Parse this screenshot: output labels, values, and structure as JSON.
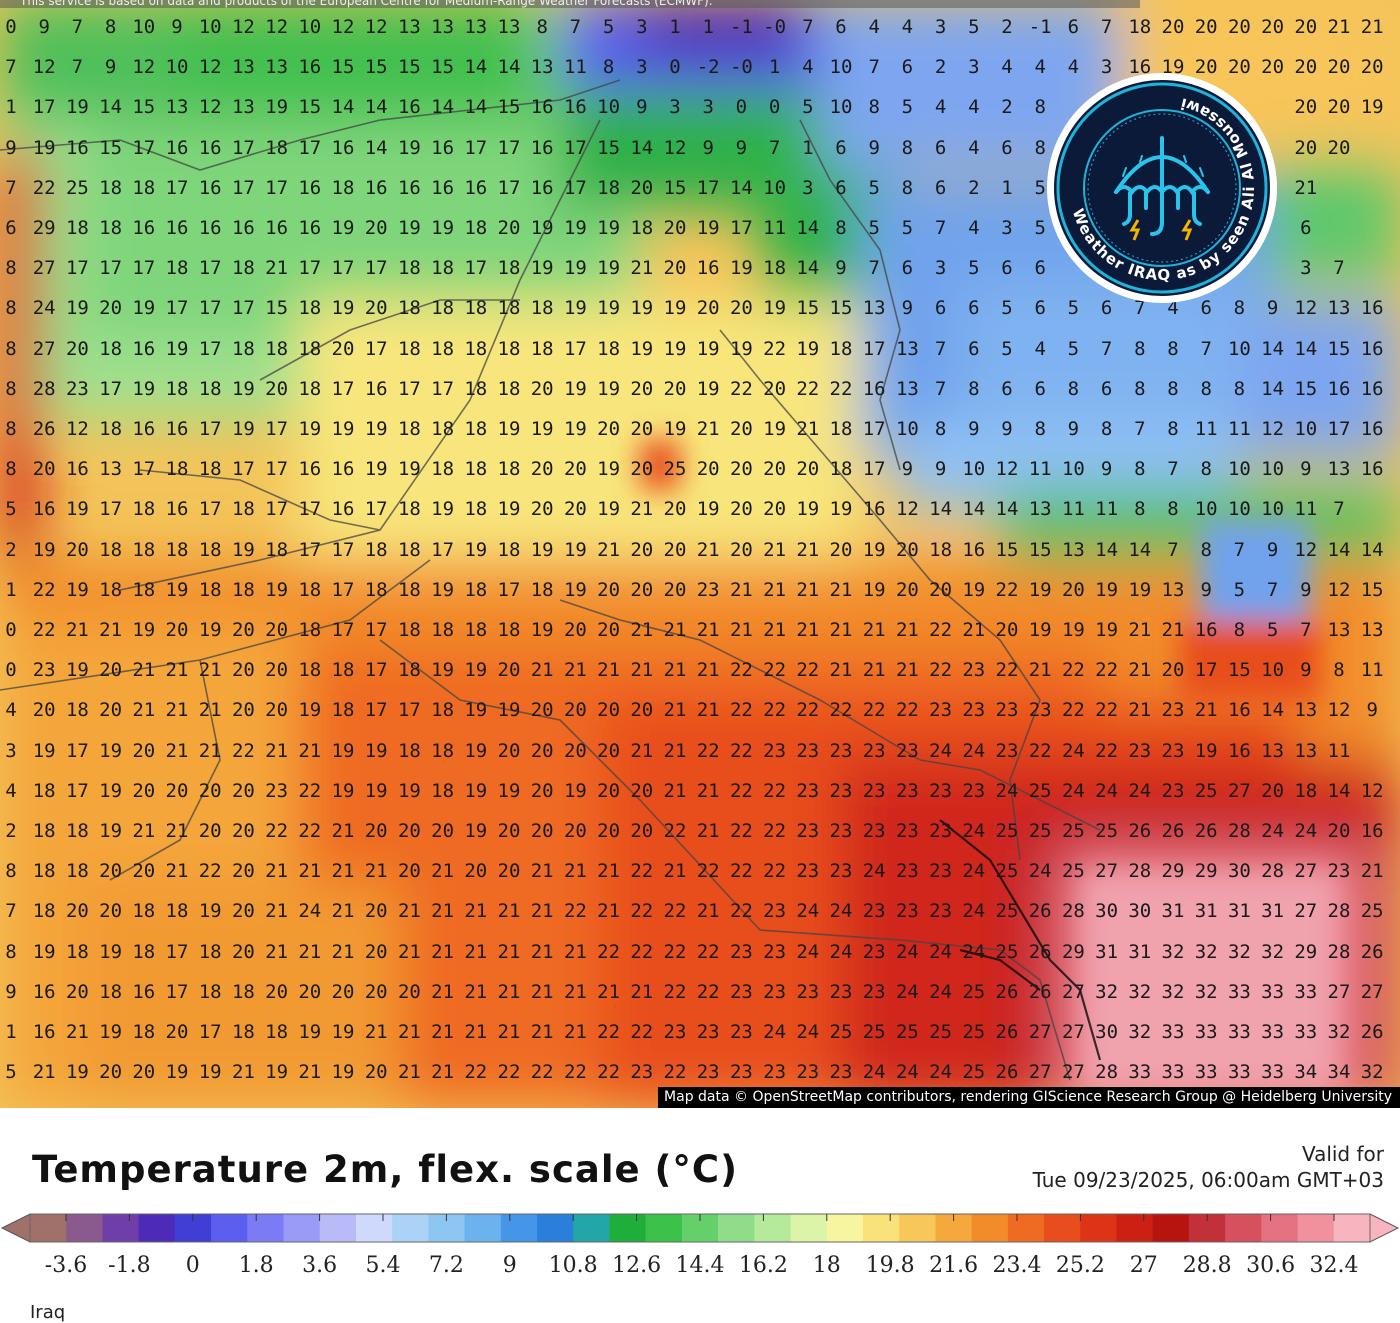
{
  "map": {
    "top_notice": "This service is based on data and products of the European Centre for Medium-Range Weather Forecasts (ECMWF).",
    "attribution": "Map data © OpenStreetMap contributors, rendering GIScience Research Group @ Heidelberg University",
    "grid_rows": [
      "0 9 7 8 10 9 10 12 12 10 12 12 13 13 13 13 8 7 5 3 1 1 -1 -0 7 6 4 4 3 5 2 -1 6 7 18 20 20 20 20 20 21 21",
      "7 12 7 9 12 10 12 13 13 16 15 15 15 15 14 14 13 11 8 3 0 -2 -0 1 4 10 7 6 2 3 4 4 4 3 16 19 20 20 20 20 20 20",
      "1 17 19 14 15 13 12 13 19 15 14 14 16 14 14 15 16 16 10 9 3 3 0 0 5 10 8 5 4 4 2 8 6 6 6 6 6 20 20 20 20 19",
      "9 19 16 15 17 16 16 17 18 17 16 14 19 16 17 17 16 17 15 14 12 9 9 7 1 6 9 8 6 4 6 8 8 8 8 8 8 9 19 20 20",
      "7 22 25 18 18 17 16 17 17 16 18 16 16 16 16 17 16 17 18 20 15 17 14 10 3 6 5 8 6 2 1 5 5 5 5 5 5 14 17 21",
      "6 29 18 18 16 16 16 16 16 16 19 20 19 19 18 20 19 19 19 18 20 19 17 11 14 8 5 5 7 4 3 5 5 5 5 5 5 3 5 6",
      "8 27 17 17 17 18 17 18 21 17 17 17 18 18 17 18 19 19 19 21 20 16 19 18 14 9 7 6 3 5 6 6 6 6 6 6 6 10 11 3 7",
      "8 24 19 20 19 17 17 17 15 18 19 20 18 18 18 18 18 19 19 19 19 20 20 19 15 15 13 9 6 6 5 6 5 6 7 4 6 8 9 12 13 16",
      "8 27 20 18 16 19 17 18 18 18 20 17 18 18 18 18 18 17 18 19 19 19 19 22 19 18 17 13 7 6 5 4 5 7 8 8 7 10 14 14 15 16",
      "8 28 23 17 19 18 18 19 20 18 17 16 17 17 18 18 20 19 19 20 20 19 22 20 22 22 16 13 7 8 6 6 8 6 8 8 8 8 14 15 16 16",
      "8 26 12 18 16 16 17 19 17 19 19 19 18 18 18 19 19 19 20 20 19 21 20 19 21 18 17 10 8 9 9 8 9 8 7 8 11 11 12 10 17 16",
      "8 20 16 13 17 18 18 17 17 16 16 19 19 18 18 18 20 20 19 20 25 20 20 20 20 18 17 9 9 10 12 11 10 9 8 7 8 10 10 9 13 16",
      "5 16 19 17 18 16 17 18 17 17 16 17 18 19 18 19 20 20 19 21 20 19 20 20 19 19 16 12 14 14 14 13 11 11 8 8 10 10 10 11 7",
      "2 19 20 18 18 18 18 19 18 17 17 18 18 17 19 18 19 19 21 20 20 21 20 21 21 20 19 20 18 16 15 15 13 14 14 7 8 7 9 12 14 14",
      "1 22 19 18 18 19 18 18 19 18 17 18 18 19 18 17 18 19 20 20 20 23 21 21 21 21 19 20 20 19 22 19 20 19 19 13 9 5 7 9 12 15",
      "0 22 21 21 19 20 19 20 20 18 17 17 18 18 18 18 19 20 20 21 21 21 21 21 21 21 21 21 22 21 20 19 19 19 21 21 16 8 5 7 13 13",
      "0 23 19 20 21 21 21 20 20 18 18 17 18 19 19 20 21 21 21 21 21 21 22 22 22 21 21 21 22 23 22 21 22 22 21 20 17 15 10 9 8 11",
      "4 20 18 20 21 21 21 20 20 19 18 17 17 18 19 19 20 20 20 20 21 21 22 22 22 22 22 22 23 23 23 23 22 22 21 23 21 16 14 13 12 9",
      "3 19 17 19 20 21 21 22 21 21 19 19 18 18 19 20 20 20 20 21 21 22 22 23 23 23 23 23 24 24 23 22 24 22 23 23 19 16 13 13 11",
      "4 18 17 19 20 20 20 20 23 22 19 19 19 18 19 19 20 19 20 20 21 21 22 22 23 23 23 23 23 23 24 25 24 24 24 23 25 27 20 18 14 12",
      "2 18 18 19 21 21 20 20 22 22 21 20 20 20 19 20 20 20 20 20 22 21 22 22 23 23 23 23 23 24 25 25 25 25 26 26 26 28 24 24 20 16",
      "8 18 18 20 20 21 22 20 21 21 21 21 20 21 20 20 21 21 21 22 21 22 22 22 23 23 24 23 23 24 25 24 25 27 28 29 29 30 28 27 23 21",
      "7 18 20 20 18 18 19 20 21 24 21 20 21 21 21 21 21 22 21 22 22 21 22 23 24 24 23 23 23 24 25 26 28 30 30 31 31 31 31 27 28 25",
      "8 19 18 19 18 17 18 20 21 21 21 20 21 21 21 21 21 21 22 22 22 22 23 23 24 24 23 24 24 24 25 26 29 31 31 32 32 32 32 29 28 26",
      "9 16 20 18 16 17 18 18 20 20 20 20 20 21 21 21 21 21 21 21 22 22 23 23 23 23 23 24 24 25 26 26 27 32 32 32 32 33 33 33 27 27",
      "1 16 21 19 18 20 17 18 18 19 19 21 21 21 21 21 21 21 22 22 23 23 23 24 24 25 25 25 25 25 26 27 27 30 32 33 33 33 33 33 32 26",
      "5 21 19 20 20 19 19 21 19 21 19 20 21 21 22 22 22 22 22 23 22 23 23 23 23 23 24 24 24 25 26 27 27 28 33 33 33 33 33 34 34 32"
    ],
    "logo": {
      "text": "Weather IRAQ as by seen Ali Al Moussawi",
      "icon": "umbrella-lightning-icon",
      "ring_color": "#1fb3d9",
      "fill_color": "#0c1a3a"
    }
  },
  "legend": {
    "title": "Temperature 2m, flex. scale (°C)",
    "valid_label": "Valid for",
    "valid_date": "Tue 09/23/2025, 06:00am GMT+03",
    "region_label": "Iraq",
    "ticks": [
      "-3.6",
      "-1.8",
      "0",
      "1.8",
      "3.6",
      "5.4",
      "7.2",
      "9",
      "10.8",
      "12.6",
      "14.4",
      "16.2",
      "18",
      "19.8",
      "21.6",
      "23.4",
      "25.2",
      "27",
      "28.8",
      "30.6",
      "32.4"
    ],
    "colors": [
      "#a0706a",
      "#8a5a8f",
      "#6f3ea8",
      "#4d2bb8",
      "#3f3fd6",
      "#5a5ff0",
      "#7b7cf5",
      "#9a9af7",
      "#b9baf8",
      "#cfd9fb",
      "#aad3f7",
      "#8ec6f2",
      "#6bb3ee",
      "#4596e8",
      "#2a7fdb",
      "#22a6a6",
      "#1fae3c",
      "#3cc24a",
      "#65d06a",
      "#8fdd8a",
      "#b6ea9b",
      "#dcf4a8",
      "#f7f5a0",
      "#f9e27a",
      "#f7c859",
      "#f5a93c",
      "#f28c2a",
      "#ef6b21",
      "#e84e1d",
      "#dd3417",
      "#cc2112",
      "#b8140f",
      "#c2303a",
      "#d6505e",
      "#e57280",
      "#f0919d",
      "#f9b5bf"
    ]
  }
}
